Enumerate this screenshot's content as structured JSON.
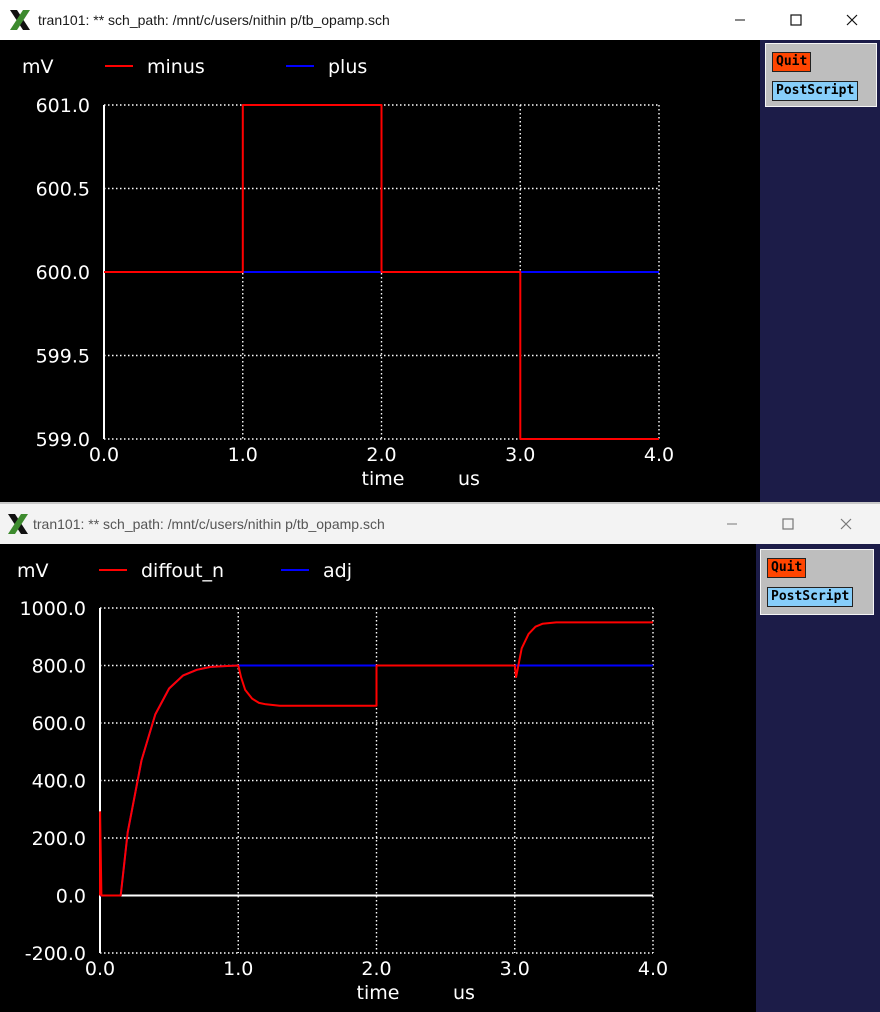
{
  "windows": [
    {
      "title": "tran101: ** sch_path: /mnt/c/users/nithin p/tb_opamp.sch",
      "buttons": {
        "quit": "Quit",
        "postscript": "PostScript"
      },
      "plot": {
        "unit_label": "mV",
        "legend": [
          {
            "name": "minus",
            "color": "#ff0000"
          },
          {
            "name": "plus",
            "color": "#0000ff"
          }
        ],
        "y_ticks": [
          "601.0",
          "600.5",
          "600.0",
          "599.5",
          "599.0"
        ],
        "x_ticks": [
          "0.0",
          "1.0",
          "2.0",
          "3.0",
          "4.0"
        ],
        "x_title": "time",
        "x_unit": "us"
      }
    },
    {
      "title": "tran101: ** sch_path: /mnt/c/users/nithin p/tb_opamp.sch",
      "buttons": {
        "quit": "Quit",
        "postscript": "PostScript"
      },
      "plot": {
        "unit_label": "mV",
        "legend": [
          {
            "name": "diffout_n",
            "color": "#ff0000"
          },
          {
            "name": "adj",
            "color": "#0000ff"
          }
        ],
        "y_ticks": [
          "1000.0",
          "800.0",
          "600.0",
          "400.0",
          "200.0",
          "0.0",
          "-200.0"
        ],
        "x_ticks": [
          "0.0",
          "1.0",
          "2.0",
          "3.0",
          "4.0"
        ],
        "x_title": "time",
        "x_unit": "us"
      }
    }
  ],
  "chart_data": [
    {
      "type": "line",
      "xlabel": "time us",
      "ylabel": "mV",
      "xlim": [
        0,
        4
      ],
      "ylim": [
        599.0,
        601.0
      ],
      "grid": true,
      "legend": "top",
      "series": [
        {
          "name": "minus",
          "color": "#ff0000",
          "x": [
            0,
            1,
            1,
            2,
            2,
            3,
            3,
            4
          ],
          "y": [
            600,
            600,
            601,
            601,
            600,
            600,
            599,
            599
          ]
        },
        {
          "name": "plus",
          "color": "#0000ff",
          "x": [
            0,
            4
          ],
          "y": [
            600,
            600
          ]
        }
      ]
    },
    {
      "type": "line",
      "xlabel": "time us",
      "ylabel": "mV",
      "xlim": [
        0,
        4
      ],
      "ylim": [
        -200,
        1000
      ],
      "grid": true,
      "legend": "top",
      "series": [
        {
          "name": "diffout_n",
          "color": "#ff0000",
          "x": [
            0,
            0.001,
            0.01,
            0.15,
            0.2,
            0.3,
            0.4,
            0.5,
            0.6,
            0.7,
            0.8,
            0.9,
            1.0,
            1.02,
            1.05,
            1.1,
            1.15,
            1.2,
            1.3,
            1.5,
            2.0,
            2.0,
            2.5,
            3.0,
            3.01,
            3.05,
            3.1,
            3.15,
            3.2,
            3.3,
            3.5,
            4.0
          ],
          "y": [
            0,
            290,
            0,
            0,
            220,
            470,
            630,
            720,
            765,
            785,
            795,
            798,
            800,
            760,
            715,
            685,
            670,
            665,
            660,
            660,
            660,
            800,
            800,
            800,
            760,
            860,
            910,
            935,
            945,
            950,
            950,
            950
          ]
        },
        {
          "name": "adj",
          "color": "#0000ff",
          "x": [
            0,
            0.15,
            0.2,
            0.3,
            0.4,
            0.5,
            0.6,
            0.7,
            0.8,
            0.9,
            1.0,
            4.0
          ],
          "y": [
            0,
            0,
            220,
            470,
            630,
            720,
            765,
            785,
            795,
            798,
            800,
            800
          ]
        }
      ]
    }
  ]
}
